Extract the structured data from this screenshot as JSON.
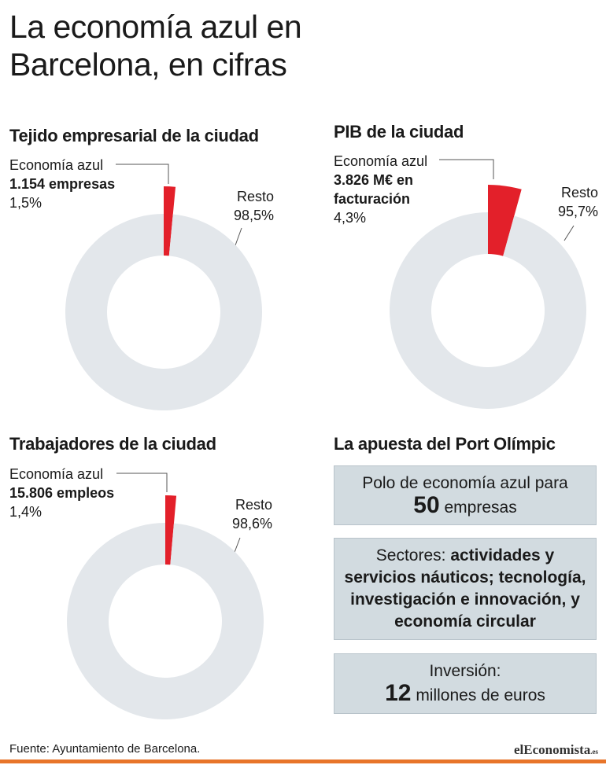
{
  "title": "La economía azul en Barcelona, en cifras",
  "chart_data": [
    {
      "type": "donut",
      "title": "Tejido empresarial de la ciudad",
      "categories": [
        "Economía azul",
        "Resto"
      ],
      "values": [
        1.5,
        98.5
      ],
      "value_labels": [
        "1,5%",
        "98,5%"
      ],
      "annotations": [
        "1.154 empresas"
      ],
      "colors": [
        "#e3202a",
        "#e3e7eb"
      ]
    },
    {
      "type": "donut",
      "title": "PIB de la ciudad",
      "categories": [
        "Economía azul",
        "Resto"
      ],
      "values": [
        4.3,
        95.7
      ],
      "value_labels": [
        "4,3%",
        "95,7%"
      ],
      "annotations": [
        "3.826 M€ en facturación"
      ],
      "colors": [
        "#e3202a",
        "#e3e7eb"
      ]
    },
    {
      "type": "donut",
      "title": "Trabajadores de la ciudad",
      "categories": [
        "Economía azul",
        "Resto"
      ],
      "values": [
        1.4,
        98.6
      ],
      "value_labels": [
        "1,4%",
        "98,6%"
      ],
      "annotations": [
        "15.806 empleos"
      ],
      "colors": [
        "#e3202a",
        "#e3e7eb"
      ]
    }
  ],
  "port_olimpic": {
    "title": "La apuesta del Port Olímpic",
    "boxes": [
      {
        "lead": "Polo de economía azul para",
        "number": "50",
        "tail": "empresas"
      },
      {
        "lead": "Sectores:",
        "text": "actividades y servicios náuticos; tecnología, investigación e innovación, y economía circular"
      },
      {
        "lead": "Inversión:",
        "number": "12",
        "tail": "millones de euros"
      }
    ]
  },
  "source": "Fuente: Ayuntamiento de Barcelona.",
  "logo": [
    "el",
    "Economista",
    ".es"
  ]
}
